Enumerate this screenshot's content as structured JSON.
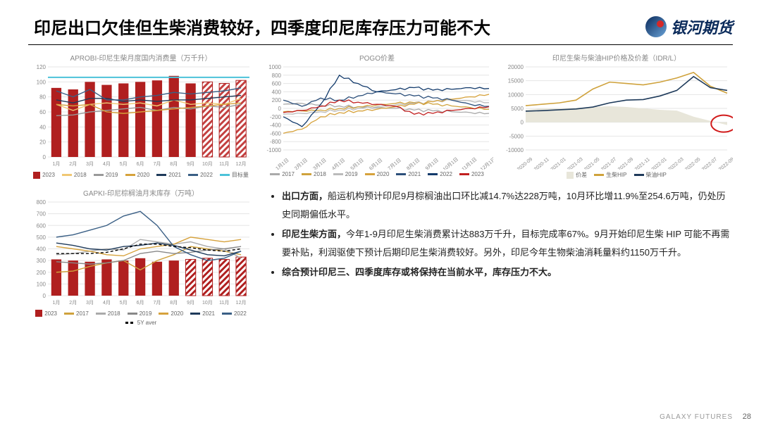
{
  "title": "印尼出口欠佳但生柴消费较好，四季度印尼库存压力可能不大",
  "logo_text": "银河期货",
  "footer": "GALAXY FUTURES",
  "page": "28",
  "bullet1_lead": "出口方面，",
  "bullet1_rest": "船运机构预计印尼9月棕榈油出口环比减14.7%达228万吨，10月环比增11.9%至254.6万吨，仍处历史同期偏低水平。",
  "bullet2_lead": "印尼生柴方面，",
  "bullet2_rest": "今年1-9月印尼生柴消费累计达883万千升，目标完成率67%。9月开始印尼生柴 HIP 可能不再需要补贴，利润驱使下预计后期印尼生柴消费较好。另外，印尼今年生物柴油消耗量料约1150万千升。",
  "bullet3": "综合预计印尼三、四季度库存或将保持在当前水平，库存压力不大。",
  "chart1": {
    "title": "APROBI-印尼生柴月度国内消费量（万千升）",
    "type": "bar-line",
    "months": [
      "1月",
      "2月",
      "3月",
      "4月",
      "5月",
      "6月",
      "7月",
      "8月",
      "9月",
      "10月",
      "11月",
      "12月"
    ],
    "ylim": [
      0,
      120
    ],
    "ytick_step": 20,
    "bars_2023": [
      92,
      90,
      100,
      96,
      98,
      100,
      102,
      108,
      98,
      100,
      98,
      102
    ],
    "bars_hatched_after": 9,
    "bar_color": "#b01f1f",
    "hatch_color": "#c34040",
    "target": 106,
    "target_color": "#4cc2d9",
    "lines": {
      "2018": {
        "color": "#f0c773",
        "vals": [
          70,
          62,
          70,
          72,
          70,
          72,
          68,
          76,
          70,
          72,
          70,
          78
        ]
      },
      "2019": {
        "color": "#999",
        "vals": [
          55,
          56,
          60,
          62,
          64,
          66,
          62,
          66,
          64,
          68,
          66,
          70
        ]
      },
      "2020": {
        "color": "#d6a23c",
        "vals": [
          70,
          68,
          70,
          60,
          58,
          60,
          62,
          64,
          66,
          68,
          70,
          72
        ]
      },
      "2021": {
        "color": "#1e3a5a",
        "vals": [
          76,
          72,
          78,
          78,
          74,
          76,
          74,
          76,
          76,
          78,
          80,
          82
        ]
      },
      "2022": {
        "color": "#3a5f85",
        "vals": [
          88,
          80,
          90,
          76,
          76,
          80,
          82,
          86,
          84,
          86,
          88,
          92
        ]
      }
    }
  },
  "chart2": {
    "title": "POGO价差",
    "type": "line",
    "xticks": [
      "1月1日",
      "2月1日",
      "3月1日",
      "4月1日",
      "5月1日",
      "6月1日",
      "7月1日",
      "8月1日",
      "9月1日",
      "10月1日",
      "11月1日",
      "12月1日"
    ],
    "ylim": [
      -1000,
      1000
    ],
    "yticks": [
      -1000,
      -800,
      -600,
      -400,
      -200,
      0,
      200,
      400,
      600,
      800,
      1000
    ],
    "series": {
      "2017": {
        "color": "#aaa",
        "vals": [
          100,
          120,
          80,
          60,
          40,
          20,
          0,
          -40,
          -60,
          -80,
          -100,
          -120
        ]
      },
      "2018": {
        "color": "#cfa23c",
        "vals": [
          -80,
          -60,
          -40,
          0,
          40,
          80,
          120,
          140,
          100,
          60,
          20,
          -20
        ]
      },
      "2019": {
        "color": "#bbb",
        "vals": [
          -140,
          -120,
          -80,
          -40,
          0,
          40,
          80,
          120,
          160,
          200,
          180,
          140
        ]
      },
      "2020": {
        "color": "#d6a23c",
        "vals": [
          -600,
          -500,
          -200,
          -100,
          -60,
          -20,
          40,
          100,
          160,
          220,
          280,
          340
        ]
      },
      "2021": {
        "color": "#2c4f7a",
        "vals": [
          200,
          50,
          250,
          200,
          300,
          400,
          350,
          300,
          250,
          200,
          100,
          50
        ]
      },
      "2022": {
        "color": "#123a6b",
        "vals": [
          -200,
          -440,
          100,
          800,
          600,
          400,
          450,
          500,
          440,
          460,
          500,
          480
        ]
      },
      "2023": {
        "color": "#c11f1f",
        "vals": [
          -100,
          -50,
          50,
          200,
          150,
          100,
          50,
          -140,
          -120,
          -50,
          0,
          40
        ]
      }
    }
  },
  "chart3": {
    "title": "印尼生柴与柴油HIP价格及价差（IDR/L）",
    "type": "line-area",
    "xticks": [
      "2020-09",
      "2020-11",
      "2021-01",
      "2021-03",
      "2021-05",
      "2021-07",
      "2021-09",
      "2021-11",
      "2022-01",
      "2022-03",
      "2022-05",
      "2022-07",
      "2022-09"
    ],
    "ylim": [
      -10000,
      20000
    ],
    "yticks": [
      -10000,
      -5000,
      0,
      5000,
      10000,
      15000,
      20000
    ],
    "area_color": "#e8e6da",
    "bio_color": "#cfa23c",
    "diesel_color": "#1e3a5a",
    "circle_color": "#d11a1a",
    "spread": [
      4500,
      5000,
      5000,
      5200,
      5500,
      5800,
      5500,
      5000,
      4500,
      4200,
      2000,
      500,
      -1000
    ],
    "bio_hip": [
      6000,
      6500,
      7000,
      8000,
      12000,
      14500,
      14000,
      13500,
      14500,
      16000,
      18000,
      13000,
      10500
    ],
    "diesel_hip": [
      4000,
      4200,
      4500,
      4800,
      5500,
      7000,
      8000,
      8200,
      9500,
      11500,
      16500,
      12500,
      11500
    ],
    "legend": [
      "价差",
      "生柴HIP",
      "柴油HIP"
    ]
  },
  "chart4": {
    "title": "GAPKI-印尼棕榈油月末库存（万吨）",
    "type": "bar-line",
    "months": [
      "1月",
      "2月",
      "3月",
      "4月",
      "5月",
      "6月",
      "7月",
      "8月",
      "9月",
      "10月",
      "11月",
      "12月"
    ],
    "ylim": [
      0,
      800
    ],
    "ytick_step": 100,
    "bars_2023": [
      310,
      300,
      290,
      310,
      300,
      320,
      290,
      300,
      310,
      320,
      310,
      330
    ],
    "bars_hatched_after": 8,
    "bar_color": "#b01f1f",
    "lines": {
      "2017": {
        "color": "#cfa23c",
        "vals": [
          200,
          210,
          250,
          280,
          300,
          220,
          300,
          350,
          420,
          400,
          380,
          350
        ]
      },
      "2018": {
        "color": "#aaa",
        "vals": [
          350,
          360,
          380,
          400,
          390,
          480,
          460,
          440,
          460,
          420,
          400,
          320
        ]
      },
      "2019": {
        "color": "#888",
        "vals": [
          290,
          280,
          270,
          280,
          300,
          360,
          380,
          360,
          370,
          390,
          400,
          420
        ]
      },
      "2020": {
        "color": "#d6a23c",
        "vals": [
          420,
          400,
          380,
          350,
          340,
          400,
          420,
          440,
          500,
          480,
          460,
          480
        ]
      },
      "2021": {
        "color": "#1e3a5a",
        "vals": [
          450,
          430,
          400,
          390,
          420,
          430,
          450,
          430,
          390,
          350,
          340,
          380
        ]
      },
      "2022": {
        "color": "#3a5f85",
        "vals": [
          500,
          520,
          560,
          600,
          680,
          720,
          600,
          420,
          350,
          300,
          320,
          380
        ]
      },
      "5Y aver": {
        "color": "#000",
        "dash": "4,3",
        "vals": [
          360,
          360,
          360,
          370,
          400,
          440,
          440,
          420,
          410,
          390,
          380,
          400
        ]
      }
    }
  }
}
